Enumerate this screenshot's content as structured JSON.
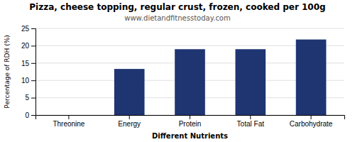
{
  "chart_data": {
    "type": "bar",
    "title": "Pizza, cheese topping, regular crust, frozen, cooked per 100g",
    "subtitle": "www.dietandfitnesstoday.com",
    "xlabel": "Different Nutrients",
    "ylabel": "Percentage of RDH (%)",
    "categories": [
      "Threonine",
      "Energy",
      "Protein",
      "Total Fat",
      "Carbohydrate"
    ],
    "values": [
      0,
      13.3,
      19.0,
      19.0,
      21.8
    ],
    "color": "#1f3572",
    "ylim": [
      0,
      25
    ],
    "yticks": [
      0,
      5,
      10,
      15,
      20,
      25
    ],
    "grid": true
  }
}
